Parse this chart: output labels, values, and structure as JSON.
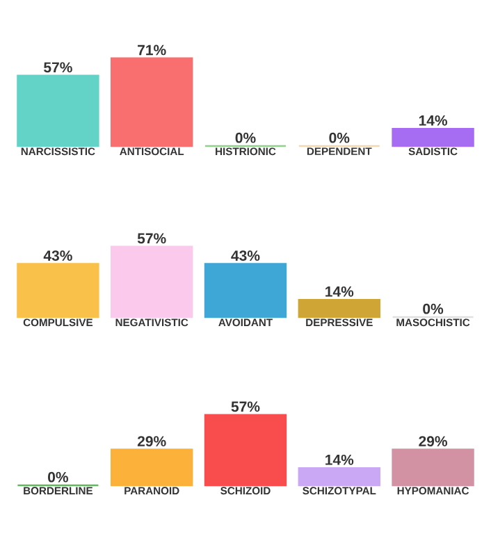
{
  "chart_data": [
    {
      "type": "bar",
      "categories": [
        "NARCISSISTIC",
        "ANTISOCIAL",
        "HISTRIONIC",
        "DEPENDENT",
        "SADISTIC"
      ],
      "values": [
        57,
        71,
        0,
        0,
        14
      ],
      "value_labels": [
        "57%",
        "71%",
        "0%",
        "0%",
        "14%"
      ],
      "colors": [
        "#62d3c6",
        "#f96f6f",
        "#8fd18a",
        "#f2d7b0",
        "#a66cf2"
      ]
    },
    {
      "type": "bar",
      "categories": [
        "COMPULSIVE",
        "NEGATIVISTIC",
        "AVOIDANT",
        "DEPRESSIVE",
        "MASOCHISTIC"
      ],
      "values": [
        43,
        57,
        43,
        14,
        0
      ],
      "value_labels": [
        "43%",
        "57%",
        "43%",
        "14%",
        "0%"
      ],
      "colors": [
        "#f9c14a",
        "#fbc9ec",
        "#3fa7d6",
        "#cfa635",
        "#e0e0e0"
      ]
    },
    {
      "type": "bar",
      "categories": [
        "BORDERLINE",
        "PARANOID",
        "SCHIZOID",
        "SCHIZOTYPAL",
        "HYPOMANIAC"
      ],
      "values": [
        0,
        29,
        57,
        14,
        29
      ],
      "value_labels": [
        "0%",
        "29%",
        "57%",
        "14%",
        "29%"
      ],
      "colors": [
        "#5fb85a",
        "#fbb13a",
        "#f94c4c",
        "#caa8f5",
        "#d392a4"
      ]
    }
  ]
}
